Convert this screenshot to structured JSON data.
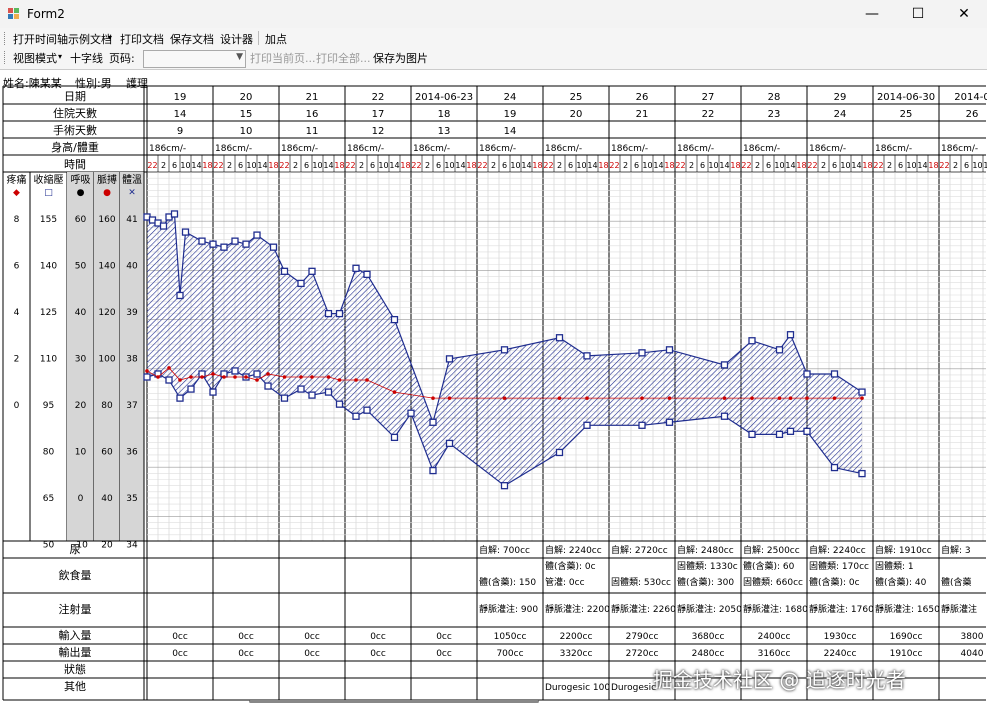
{
  "window": {
    "title": "Form2",
    "minimize": "—",
    "maximize": "☐",
    "close": "✕"
  },
  "menubar": {
    "items": [
      "打开时间轴示例文档",
      "▾",
      "打印文档",
      "保存文档",
      "设计器",
      "加点"
    ]
  },
  "toolbar": {
    "view_mode": "视图模式",
    "cross_line": "十字线",
    "page_label": "页码:",
    "page_value": "",
    "print_current": "打印当前页...",
    "print_all": "打印全部...",
    "save_image": "保存为图片"
  },
  "patient": {
    "name": "姓名:陳某某",
    "gender": "性別:男",
    "ward": "護理"
  },
  "header_labels": {
    "date": "日期",
    "hospital_days": "住院天數",
    "surgery_days": "手術天數",
    "height_weight": "身高/體重",
    "time": "時間"
  },
  "day_columns": [
    {
      "date": "19",
      "hosp": "14",
      "surg": "9",
      "hw": "186cm/-"
    },
    {
      "date": "20",
      "hosp": "15",
      "surg": "10",
      "hw": "186cm/-"
    },
    {
      "date": "21",
      "hosp": "16",
      "surg": "11",
      "hw": "186cm/-"
    },
    {
      "date": "22",
      "hosp": "17",
      "surg": "12",
      "hw": "186cm/-"
    },
    {
      "date": "2014-06-23",
      "hosp": "18",
      "surg": "13",
      "hw": "186cm/-"
    },
    {
      "date": "24",
      "hosp": "19",
      "surg": "14",
      "hw": "186cm/-"
    },
    {
      "date": "25",
      "hosp": "20",
      "surg": "",
      "hw": "186cm/-"
    },
    {
      "date": "26",
      "hosp": "21",
      "surg": "",
      "hw": "186cm/-"
    },
    {
      "date": "27",
      "hosp": "22",
      "surg": "",
      "hw": "186cm/-"
    },
    {
      "date": "28",
      "hosp": "23",
      "surg": "",
      "hw": "186cm/-"
    },
    {
      "date": "29",
      "hosp": "24",
      "surg": "",
      "hw": "186cm/-"
    },
    {
      "date": "2014-06-30",
      "hosp": "25",
      "surg": "",
      "hw": "186cm/-"
    },
    {
      "date": "2014-0",
      "hosp": "26",
      "surg": "",
      "hw": "186cm/-"
    }
  ],
  "time_slots": [
    "22",
    "2",
    "6",
    "10",
    "14",
    "18"
  ],
  "axes": [
    {
      "title": "疼痛",
      "marker": "◆",
      "color": "#cc0000",
      "ticks": [
        "8",
        "6",
        "4",
        "2",
        "0",
        "",
        "",
        ""
      ]
    },
    {
      "title": "收縮壓",
      "marker": "□",
      "color": "#1f2d8f",
      "ticks": [
        "155",
        "140",
        "125",
        "110",
        "95",
        "80",
        "65",
        "50"
      ]
    },
    {
      "title": "呼吸",
      "marker": "●",
      "color": "#000000",
      "ticks": [
        "60",
        "50",
        "40",
        "30",
        "20",
        "10",
        "0",
        "-10"
      ]
    },
    {
      "title": "脈搏",
      "marker": "●",
      "color": "#cc0000",
      "ticks": [
        "160",
        "140",
        "120",
        "100",
        "80",
        "60",
        "40",
        "20"
      ]
    },
    {
      "title": "體溫",
      "marker": "✕",
      "color": "#1f2d8f",
      "ticks": [
        "41",
        "40",
        "39",
        "38",
        "37",
        "36",
        "35",
        "34"
      ]
    }
  ],
  "chart_data": {
    "type": "line",
    "x_unit": "4-hour slot index from day 19 22:00",
    "series": [
      {
        "name": "收縮壓",
        "color": "#1f2d8f",
        "marker": "square",
        "points": [
          [
            0,
            156
          ],
          [
            1,
            155
          ],
          [
            2,
            154
          ],
          [
            3,
            153
          ],
          [
            4,
            156
          ],
          [
            5,
            157
          ],
          [
            6,
            130
          ],
          [
            7,
            151
          ],
          [
            10,
            148
          ],
          [
            12,
            147
          ],
          [
            14,
            146
          ],
          [
            16,
            148
          ],
          [
            18,
            147
          ],
          [
            20,
            150
          ],
          [
            23,
            146
          ],
          [
            25,
            138
          ],
          [
            28,
            134
          ],
          [
            30,
            138
          ],
          [
            33,
            124
          ],
          [
            35,
            124
          ],
          [
            38,
            139
          ],
          [
            40,
            137
          ],
          [
            45,
            122
          ],
          [
            52,
            88
          ],
          [
            55,
            109
          ],
          [
            65,
            112
          ],
          [
            75,
            116
          ],
          [
            80,
            110
          ],
          [
            90,
            111
          ],
          [
            95,
            112
          ],
          [
            105,
            107
          ],
          [
            110,
            115
          ],
          [
            115,
            112
          ],
          [
            117,
            117
          ],
          [
            120,
            104
          ],
          [
            125,
            104
          ],
          [
            130,
            98
          ]
        ]
      },
      {
        "name": "舒張壓",
        "color": "#1f2d8f",
        "marker": "square",
        "points": [
          [
            0,
            103
          ],
          [
            2,
            104
          ],
          [
            4,
            102
          ],
          [
            6,
            96
          ],
          [
            8,
            99
          ],
          [
            10,
            104
          ],
          [
            12,
            98
          ],
          [
            14,
            104
          ],
          [
            16,
            105
          ],
          [
            18,
            103
          ],
          [
            20,
            104
          ],
          [
            22,
            100
          ],
          [
            25,
            96
          ],
          [
            28,
            99
          ],
          [
            30,
            97
          ],
          [
            33,
            98
          ],
          [
            35,
            94
          ],
          [
            38,
            90
          ],
          [
            40,
            92
          ],
          [
            45,
            83
          ],
          [
            48,
            91
          ],
          [
            52,
            72
          ],
          [
            55,
            81
          ],
          [
            65,
            67
          ],
          [
            75,
            78
          ],
          [
            80,
            87
          ],
          [
            90,
            87
          ],
          [
            95,
            88
          ],
          [
            105,
            90
          ],
          [
            110,
            84
          ],
          [
            115,
            84
          ],
          [
            117,
            85
          ],
          [
            120,
            85
          ],
          [
            125,
            73
          ],
          [
            130,
            71
          ]
        ]
      },
      {
        "name": "脈搏",
        "color": "#cc0000",
        "marker": "dot",
        "points": [
          [
            0,
            105
          ],
          [
            2,
            103
          ],
          [
            4,
            106
          ],
          [
            6,
            102
          ],
          [
            8,
            103
          ],
          [
            10,
            103
          ],
          [
            12,
            104
          ],
          [
            14,
            103
          ],
          [
            16,
            103
          ],
          [
            18,
            103
          ],
          [
            20,
            102
          ],
          [
            22,
            104
          ],
          [
            25,
            103
          ],
          [
            28,
            103
          ],
          [
            30,
            103
          ],
          [
            33,
            103
          ],
          [
            35,
            102
          ],
          [
            38,
            102
          ],
          [
            40,
            102
          ],
          [
            45,
            98
          ],
          [
            52,
            96
          ],
          [
            55,
            96
          ],
          [
            65,
            96
          ],
          [
            75,
            96
          ],
          [
            80,
            96
          ],
          [
            90,
            96
          ],
          [
            95,
            96
          ],
          [
            105,
            96
          ],
          [
            110,
            96
          ],
          [
            115,
            96
          ],
          [
            117,
            96
          ],
          [
            120,
            96
          ],
          [
            125,
            96
          ],
          [
            130,
            96
          ]
        ]
      }
    ]
  },
  "bottom_labels": {
    "urine": "尿",
    "intake_food": "飲食量",
    "injection": "注射量",
    "input": "輸入量",
    "output": "輸出量",
    "status": "狀態",
    "other": "其他"
  },
  "bottom_rows": {
    "urine": [
      "",
      "",
      "",
      "",
      "",
      "自解: 700cc",
      "自解: 2240cc",
      "自解: 2720cc",
      "自解: 2480cc",
      "自解: 2500cc",
      "自解: 2240cc",
      "自解: 1910cc",
      "自解: 3"
    ],
    "food1": [
      "",
      "",
      "",
      "",
      "",
      "",
      "體(含藥): 0c",
      "",
      "固體類: 1330c",
      "體(含藥): 60",
      "固體類: 170cc",
      "固體類: 1",
      ""
    ],
    "food2": [
      "",
      "",
      "",
      "",
      "",
      "體(含藥): 150",
      "管灌: 0cc",
      "固體類: 530cc",
      "體(含藥): 300",
      "固體類: 660cc",
      "體(含藥): 0c",
      "體(含藥): 40",
      "體(含藥"
    ],
    "injection": [
      "",
      "",
      "",
      "",
      "",
      "靜脈灌注: 900",
      "靜脈灌注: 2200",
      "靜脈灌注: 2260",
      "靜脈灌注: 2050",
      "靜脈灌注: 1680",
      "靜脈灌注: 1760",
      "靜脈灌注: 1650",
      "靜脈灌注"
    ],
    "input": [
      "0cc",
      "0cc",
      "0cc",
      "0cc",
      "0cc",
      "1050cc",
      "2200cc",
      "2790cc",
      "3680cc",
      "2400cc",
      "1930cc",
      "1690cc",
      "3800"
    ],
    "output": [
      "0cc",
      "0cc",
      "0cc",
      "0cc",
      "0cc",
      "700cc",
      "3320cc",
      "2720cc",
      "2480cc",
      "3160cc",
      "2240cc",
      "1910cc",
      "4040"
    ],
    "other": [
      "",
      "",
      "",
      "",
      "",
      "",
      "Durogesic 100",
      "Durogesic",
      "",
      "",
      "",
      "",
      ""
    ]
  },
  "watermark": "掘金技术社区 @ 追逐时光者"
}
